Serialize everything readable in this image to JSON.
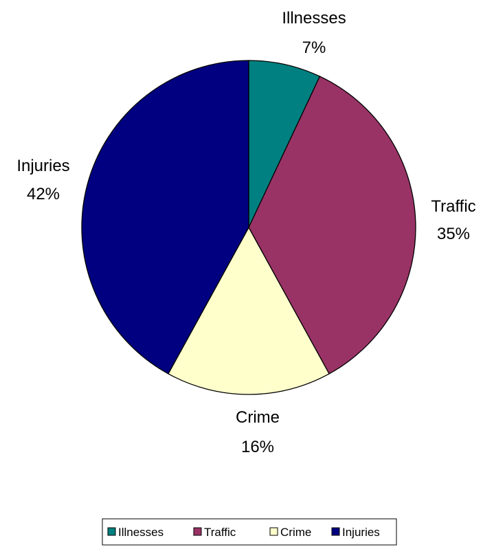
{
  "chart_data": {
    "type": "pie",
    "title": "",
    "legend_position": "bottom",
    "slices": [
      {
        "name": "Illnesses",
        "label": "Illnesses",
        "percent_label": "7%",
        "value": 7,
        "color": "#008080"
      },
      {
        "name": "Traffic",
        "label": "Traffic",
        "percent_label": "35%",
        "value": 35,
        "color": "#993366"
      },
      {
        "name": "Crime",
        "label": "Crime",
        "percent_label": "16%",
        "value": 16,
        "color": "#FFFFCC"
      },
      {
        "name": "Injuries",
        "label": "Injuries",
        "percent_label": "42%",
        "value": 42,
        "color": "#000080"
      }
    ]
  }
}
